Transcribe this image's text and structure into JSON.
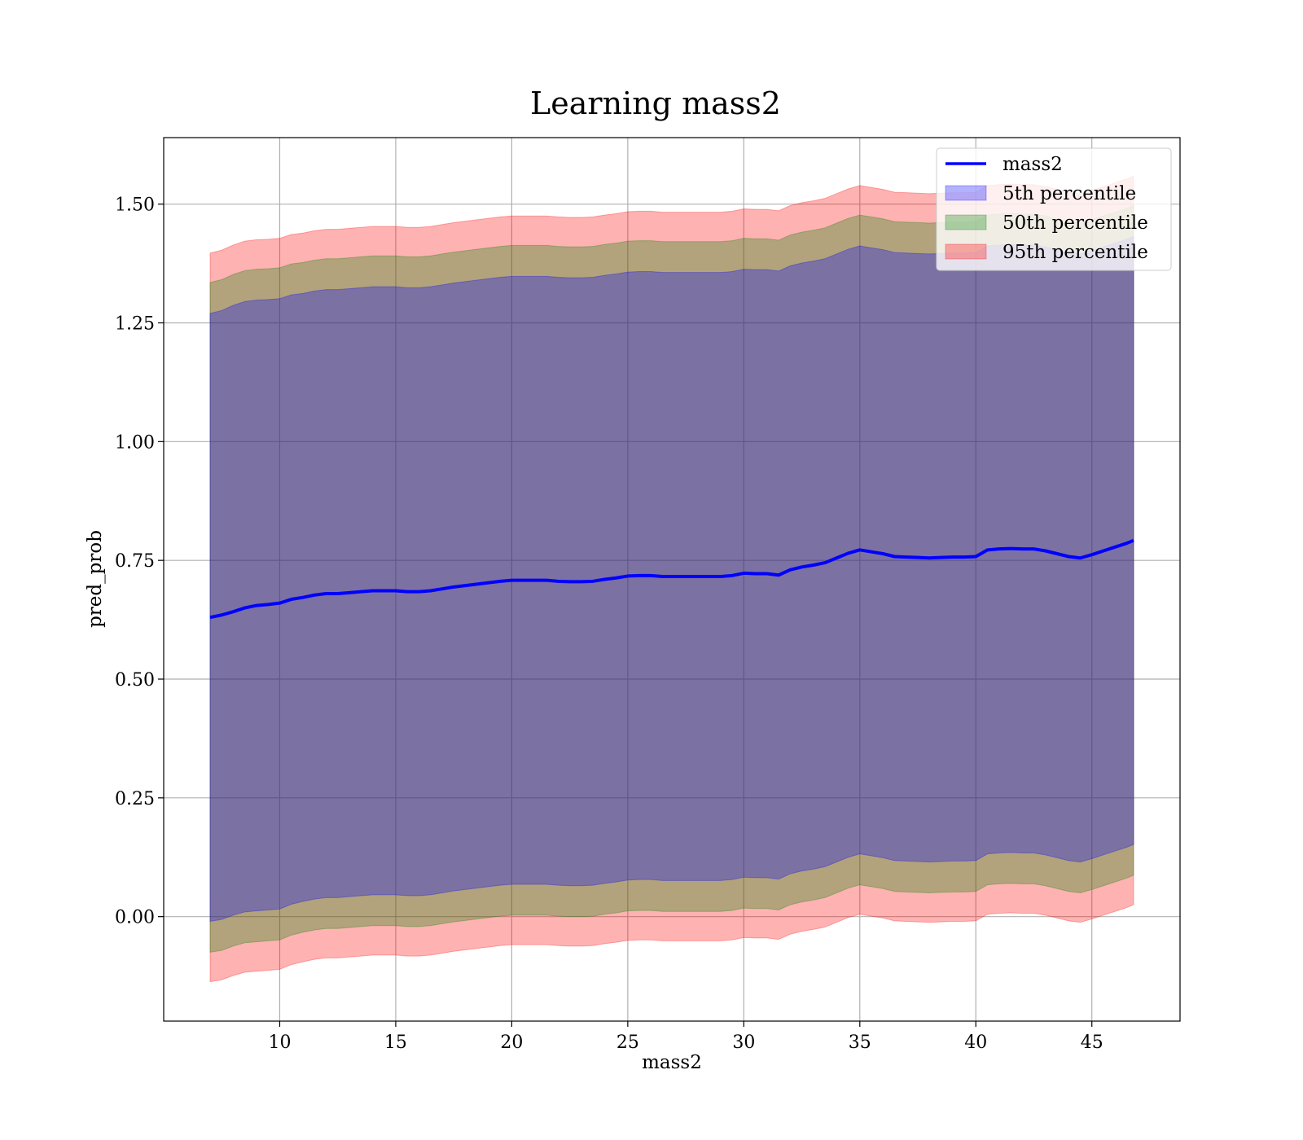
{
  "chart_data": {
    "type": "area",
    "title": "Learning mass2",
    "xlabel": "mass2",
    "ylabel": "pred_prob",
    "xlim": [
      5.0,
      48.8
    ],
    "ylim": [
      -0.22,
      1.64
    ],
    "xticks": [
      10,
      15,
      20,
      25,
      30,
      35,
      40,
      45
    ],
    "xtick_labels": [
      "10",
      "15",
      "20",
      "25",
      "30",
      "35",
      "40",
      "45"
    ],
    "yticks": [
      0.0,
      0.25,
      0.5,
      0.75,
      1.0,
      1.25,
      1.5
    ],
    "ytick_labels": [
      "0.00",
      "0.25",
      "0.50",
      "0.75",
      "1.00",
      "1.25",
      "1.50"
    ],
    "grid": true,
    "legend_position": "top-right",
    "x": [
      7.0,
      7.5,
      8.0,
      8.5,
      9.0,
      9.5,
      10.0,
      10.5,
      11.0,
      11.5,
      12.0,
      12.5,
      13.0,
      13.5,
      14.0,
      14.5,
      15.0,
      15.5,
      16.0,
      16.5,
      17.0,
      17.5,
      18.0,
      18.5,
      19.0,
      19.5,
      20.0,
      20.5,
      21.0,
      21.5,
      22.0,
      22.5,
      23.0,
      23.5,
      24.0,
      24.5,
      25.0,
      25.5,
      26.0,
      26.5,
      27.0,
      27.5,
      28.0,
      28.5,
      29.0,
      29.5,
      30.0,
      30.5,
      31.0,
      31.5,
      32.0,
      32.5,
      33.0,
      33.5,
      34.0,
      34.5,
      35.0,
      35.5,
      36.0,
      36.5,
      37.0,
      37.5,
      38.0,
      38.5,
      39.0,
      39.5,
      40.0,
      40.5,
      41.0,
      41.5,
      42.0,
      42.5,
      43.0,
      43.5,
      44.0,
      44.5,
      45.0,
      45.5,
      46.0,
      46.5,
      46.8
    ],
    "series": [
      {
        "name": "mass2",
        "kind": "line",
        "color": "#0000ff",
        "values": [
          0.63,
          0.635,
          0.642,
          0.65,
          0.655,
          0.657,
          0.66,
          0.668,
          0.672,
          0.677,
          0.68,
          0.68,
          0.682,
          0.684,
          0.686,
          0.686,
          0.686,
          0.684,
          0.684,
          0.686,
          0.69,
          0.694,
          0.697,
          0.7,
          0.703,
          0.706,
          0.708,
          0.708,
          0.708,
          0.708,
          0.706,
          0.705,
          0.705,
          0.706,
          0.71,
          0.713,
          0.717,
          0.718,
          0.718,
          0.716,
          0.716,
          0.716,
          0.716,
          0.716,
          0.716,
          0.718,
          0.723,
          0.722,
          0.722,
          0.719,
          0.73,
          0.736,
          0.74,
          0.745,
          0.755,
          0.765,
          0.772,
          0.768,
          0.764,
          0.758,
          0.757,
          0.756,
          0.755,
          0.756,
          0.757,
          0.757,
          0.758,
          0.772,
          0.774,
          0.775,
          0.774,
          0.774,
          0.77,
          0.764,
          0.758,
          0.755,
          0.762,
          0.77,
          0.778,
          0.786,
          0.792
        ]
      },
      {
        "name": "5th percentile",
        "kind": "band",
        "color": "#0000ff",
        "upper": [
          1.27,
          1.276,
          1.287,
          1.295,
          1.298,
          1.299,
          1.301,
          1.309,
          1.312,
          1.317,
          1.32,
          1.32,
          1.322,
          1.324,
          1.326,
          1.326,
          1.326,
          1.324,
          1.324,
          1.326,
          1.33,
          1.334,
          1.337,
          1.34,
          1.343,
          1.346,
          1.348,
          1.348,
          1.348,
          1.348,
          1.346,
          1.345,
          1.345,
          1.346,
          1.35,
          1.353,
          1.357,
          1.358,
          1.358,
          1.356,
          1.356,
          1.356,
          1.356,
          1.356,
          1.356,
          1.358,
          1.363,
          1.362,
          1.362,
          1.359,
          1.37,
          1.376,
          1.38,
          1.385,
          1.395,
          1.405,
          1.412,
          1.408,
          1.404,
          1.398,
          1.397,
          1.396,
          1.395,
          1.396,
          1.397,
          1.397,
          1.398,
          1.412,
          1.414,
          1.415,
          1.414,
          1.414,
          1.41,
          1.404,
          1.398,
          1.395,
          1.402,
          1.41,
          1.418,
          1.426,
          1.432
        ],
        "lower": [
          -0.01,
          -0.006,
          0.003,
          0.01,
          0.012,
          0.014,
          0.016,
          0.026,
          0.032,
          0.037,
          0.04,
          0.04,
          0.042,
          0.044,
          0.046,
          0.046,
          0.046,
          0.044,
          0.044,
          0.046,
          0.05,
          0.054,
          0.057,
          0.06,
          0.063,
          0.066,
          0.068,
          0.068,
          0.068,
          0.068,
          0.066,
          0.065,
          0.065,
          0.066,
          0.07,
          0.073,
          0.077,
          0.078,
          0.078,
          0.076,
          0.076,
          0.076,
          0.076,
          0.076,
          0.076,
          0.078,
          0.083,
          0.082,
          0.082,
          0.079,
          0.09,
          0.096,
          0.1,
          0.105,
          0.115,
          0.125,
          0.132,
          0.128,
          0.124,
          0.118,
          0.117,
          0.116,
          0.115,
          0.116,
          0.117,
          0.117,
          0.118,
          0.132,
          0.134,
          0.135,
          0.134,
          0.134,
          0.13,
          0.124,
          0.118,
          0.115,
          0.122,
          0.13,
          0.138,
          0.146,
          0.152
        ]
      },
      {
        "name": "50th percentile",
        "kind": "band",
        "color": "#008000",
        "upper": [
          1.335,
          1.341,
          1.352,
          1.36,
          1.363,
          1.364,
          1.366,
          1.374,
          1.377,
          1.382,
          1.385,
          1.385,
          1.387,
          1.389,
          1.391,
          1.391,
          1.391,
          1.389,
          1.389,
          1.391,
          1.395,
          1.399,
          1.402,
          1.405,
          1.408,
          1.411,
          1.413,
          1.413,
          1.413,
          1.413,
          1.411,
          1.41,
          1.41,
          1.411,
          1.415,
          1.418,
          1.422,
          1.423,
          1.423,
          1.421,
          1.421,
          1.421,
          1.421,
          1.421,
          1.421,
          1.423,
          1.428,
          1.427,
          1.427,
          1.424,
          1.435,
          1.441,
          1.445,
          1.45,
          1.46,
          1.47,
          1.477,
          1.473,
          1.469,
          1.463,
          1.462,
          1.461,
          1.46,
          1.461,
          1.462,
          1.462,
          1.463,
          1.477,
          1.479,
          1.48,
          1.479,
          1.479,
          1.475,
          1.469,
          1.463,
          1.46,
          1.467,
          1.475,
          1.483,
          1.491,
          1.497
        ],
        "lower": [
          -0.075,
          -0.071,
          -0.062,
          -0.055,
          -0.053,
          -0.051,
          -0.049,
          -0.039,
          -0.033,
          -0.028,
          -0.025,
          -0.025,
          -0.023,
          -0.021,
          -0.019,
          -0.019,
          -0.019,
          -0.021,
          -0.021,
          -0.019,
          -0.015,
          -0.011,
          -0.008,
          -0.005,
          -0.002,
          0.001,
          0.003,
          0.003,
          0.003,
          0.003,
          0.001,
          0.0,
          0.0,
          0.001,
          0.005,
          0.008,
          0.012,
          0.013,
          0.013,
          0.011,
          0.011,
          0.011,
          0.011,
          0.011,
          0.011,
          0.013,
          0.018,
          0.017,
          0.017,
          0.014,
          0.025,
          0.031,
          0.035,
          0.04,
          0.05,
          0.06,
          0.067,
          0.063,
          0.059,
          0.053,
          0.052,
          0.051,
          0.05,
          0.051,
          0.052,
          0.052,
          0.053,
          0.067,
          0.069,
          0.07,
          0.069,
          0.069,
          0.065,
          0.059,
          0.053,
          0.05,
          0.057,
          0.065,
          0.073,
          0.081,
          0.087
        ]
      },
      {
        "name": "95th percentile",
        "kind": "band",
        "color": "#ff0000",
        "upper": [
          1.397,
          1.403,
          1.414,
          1.422,
          1.425,
          1.426,
          1.428,
          1.436,
          1.439,
          1.444,
          1.447,
          1.447,
          1.449,
          1.451,
          1.453,
          1.453,
          1.453,
          1.451,
          1.451,
          1.453,
          1.457,
          1.461,
          1.464,
          1.467,
          1.47,
          1.473,
          1.475,
          1.475,
          1.475,
          1.475,
          1.473,
          1.472,
          1.472,
          1.473,
          1.477,
          1.48,
          1.484,
          1.485,
          1.485,
          1.483,
          1.483,
          1.483,
          1.483,
          1.483,
          1.483,
          1.485,
          1.49,
          1.489,
          1.489,
          1.486,
          1.497,
          1.503,
          1.507,
          1.512,
          1.522,
          1.532,
          1.539,
          1.535,
          1.531,
          1.525,
          1.524,
          1.523,
          1.522,
          1.523,
          1.524,
          1.524,
          1.525,
          1.539,
          1.541,
          1.542,
          1.541,
          1.541,
          1.537,
          1.531,
          1.525,
          1.522,
          1.529,
          1.537,
          1.545,
          1.553,
          1.559
        ],
        "lower": [
          -0.137,
          -0.133,
          -0.124,
          -0.117,
          -0.115,
          -0.113,
          -0.111,
          -0.101,
          -0.095,
          -0.09,
          -0.087,
          -0.087,
          -0.085,
          -0.083,
          -0.081,
          -0.081,
          -0.081,
          -0.083,
          -0.083,
          -0.081,
          -0.077,
          -0.073,
          -0.07,
          -0.067,
          -0.064,
          -0.061,
          -0.059,
          -0.059,
          -0.059,
          -0.059,
          -0.061,
          -0.062,
          -0.062,
          -0.061,
          -0.057,
          -0.054,
          -0.05,
          -0.049,
          -0.049,
          -0.051,
          -0.051,
          -0.051,
          -0.051,
          -0.051,
          -0.051,
          -0.049,
          -0.044,
          -0.045,
          -0.045,
          -0.048,
          -0.037,
          -0.031,
          -0.027,
          -0.022,
          -0.012,
          -0.002,
          0.005,
          0.001,
          -0.003,
          -0.009,
          -0.01,
          -0.011,
          -0.012,
          -0.011,
          -0.01,
          -0.01,
          -0.009,
          0.005,
          0.007,
          0.008,
          0.007,
          0.007,
          0.003,
          -0.003,
          -0.009,
          -0.012,
          -0.005,
          0.003,
          0.011,
          0.019,
          0.025
        ]
      }
    ]
  }
}
